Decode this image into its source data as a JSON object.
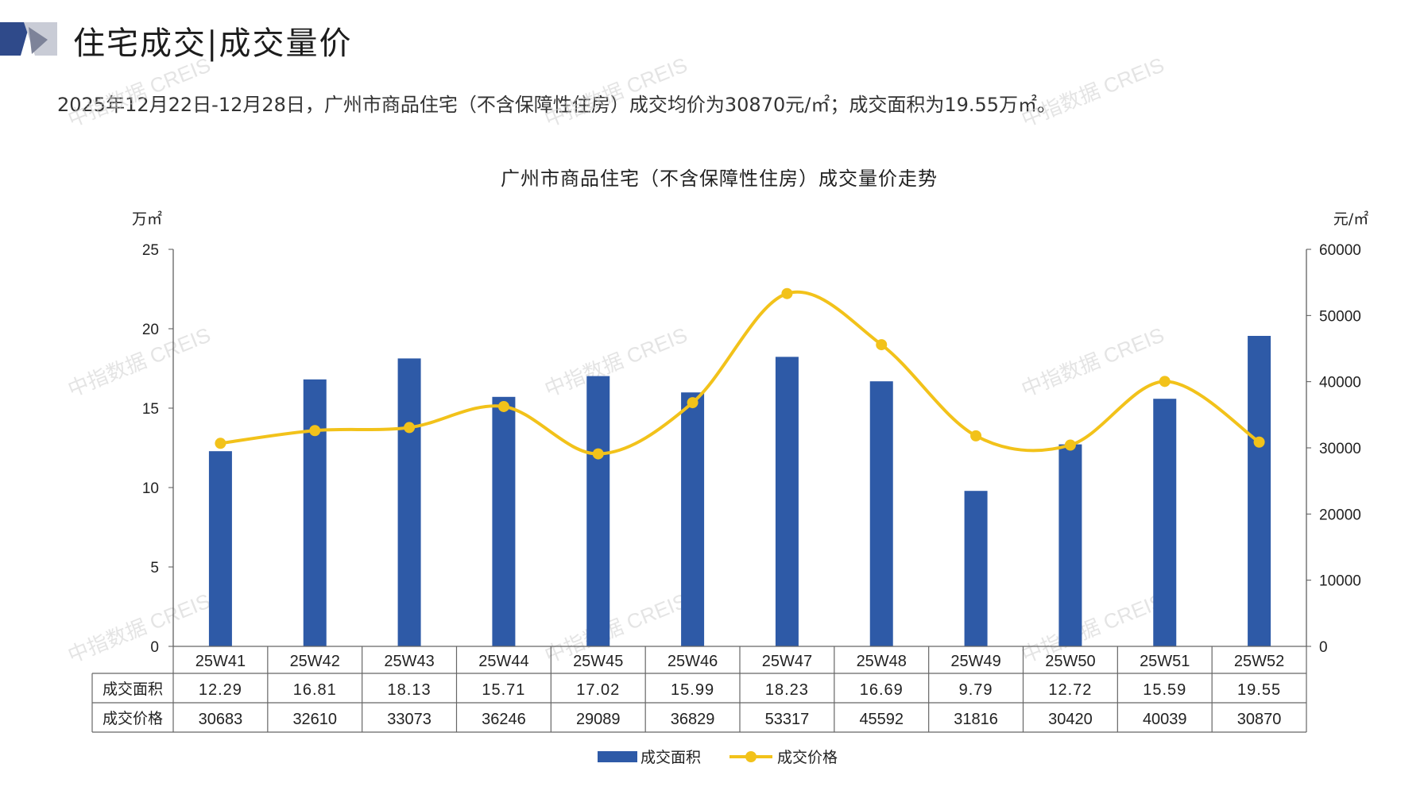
{
  "header": {
    "title": "住宅成交|成交量价",
    "summary": "2025年12月22日-12月28日，广州市商品住宅（不含保障性住房）成交均价为30870元/㎡；成交面积为19.55万㎡。"
  },
  "watermark": "中指数据 CREIS",
  "colors": {
    "bar": "#2e5aa7",
    "line": "#f2c21a",
    "logo_dark": "#2f4a8a",
    "logo_light": "#c9ccd6"
  },
  "chart_data": {
    "type": "bar",
    "title": "广州市商品住宅（不含保障性住房）成交量价走势",
    "categories": [
      "25W41",
      "25W42",
      "25W43",
      "25W44",
      "25W45",
      "25W46",
      "25W47",
      "25W48",
      "25W49",
      "25W50",
      "25W51",
      "25W52"
    ],
    "series": [
      {
        "name": "成交面积",
        "type": "bar",
        "axis": "left",
        "values": [
          12.29,
          16.81,
          18.13,
          15.71,
          17.02,
          15.99,
          18.23,
          16.69,
          9.79,
          12.72,
          15.59,
          19.55
        ],
        "labels": [
          "12.29",
          "16.81",
          "18.13",
          "15.71",
          "17.02",
          "15.99",
          "18.23",
          "16.69",
          "9.79",
          "12.72",
          "15.59",
          "19.55"
        ]
      },
      {
        "name": "成交价格",
        "type": "line",
        "axis": "right",
        "values": [
          30683,
          32610,
          33073,
          36246,
          29089,
          36829,
          53317,
          45592,
          31816,
          30420,
          40039,
          30870
        ],
        "labels": [
          "30683",
          "32610",
          "33073",
          "36246",
          "29089",
          "36829",
          "53317",
          "45592",
          "31816",
          "30420",
          "40039",
          "30870"
        ]
      }
    ],
    "y_left": {
      "unit": "万㎡",
      "min": 0,
      "max": 25,
      "ticks": [
        "0",
        "5",
        "10",
        "15",
        "20",
        "25"
      ]
    },
    "y_right": {
      "unit": "元/㎡",
      "min": 0,
      "max": 60000,
      "ticks": [
        "0",
        "10000",
        "20000",
        "30000",
        "40000",
        "50000",
        "60000"
      ]
    },
    "legend": [
      "成交面积",
      "成交价格"
    ],
    "legend_position": "bottom"
  }
}
